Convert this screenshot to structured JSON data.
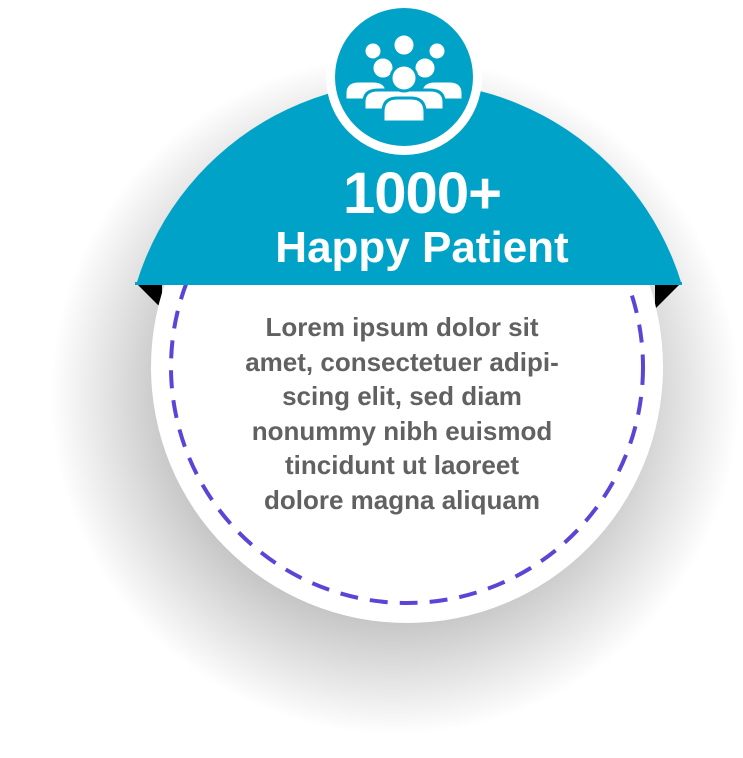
{
  "stat": {
    "number": "1000+",
    "label": "Happy Patient"
  },
  "body": {
    "text": "Lorem ipsum dolor sit\namet, consectetuer adipi-\nscing elit, sed diam\nnonummy nibh euismod\ntincidunt ut laoreet\ndolore magna aliquam"
  },
  "icon": {
    "name": "people-group-icon"
  },
  "colors": {
    "accent": "#00a3c7",
    "dashed_ring": "#5b45d6",
    "body_text": "#616161",
    "fold": "#000000",
    "card": "#ffffff"
  }
}
